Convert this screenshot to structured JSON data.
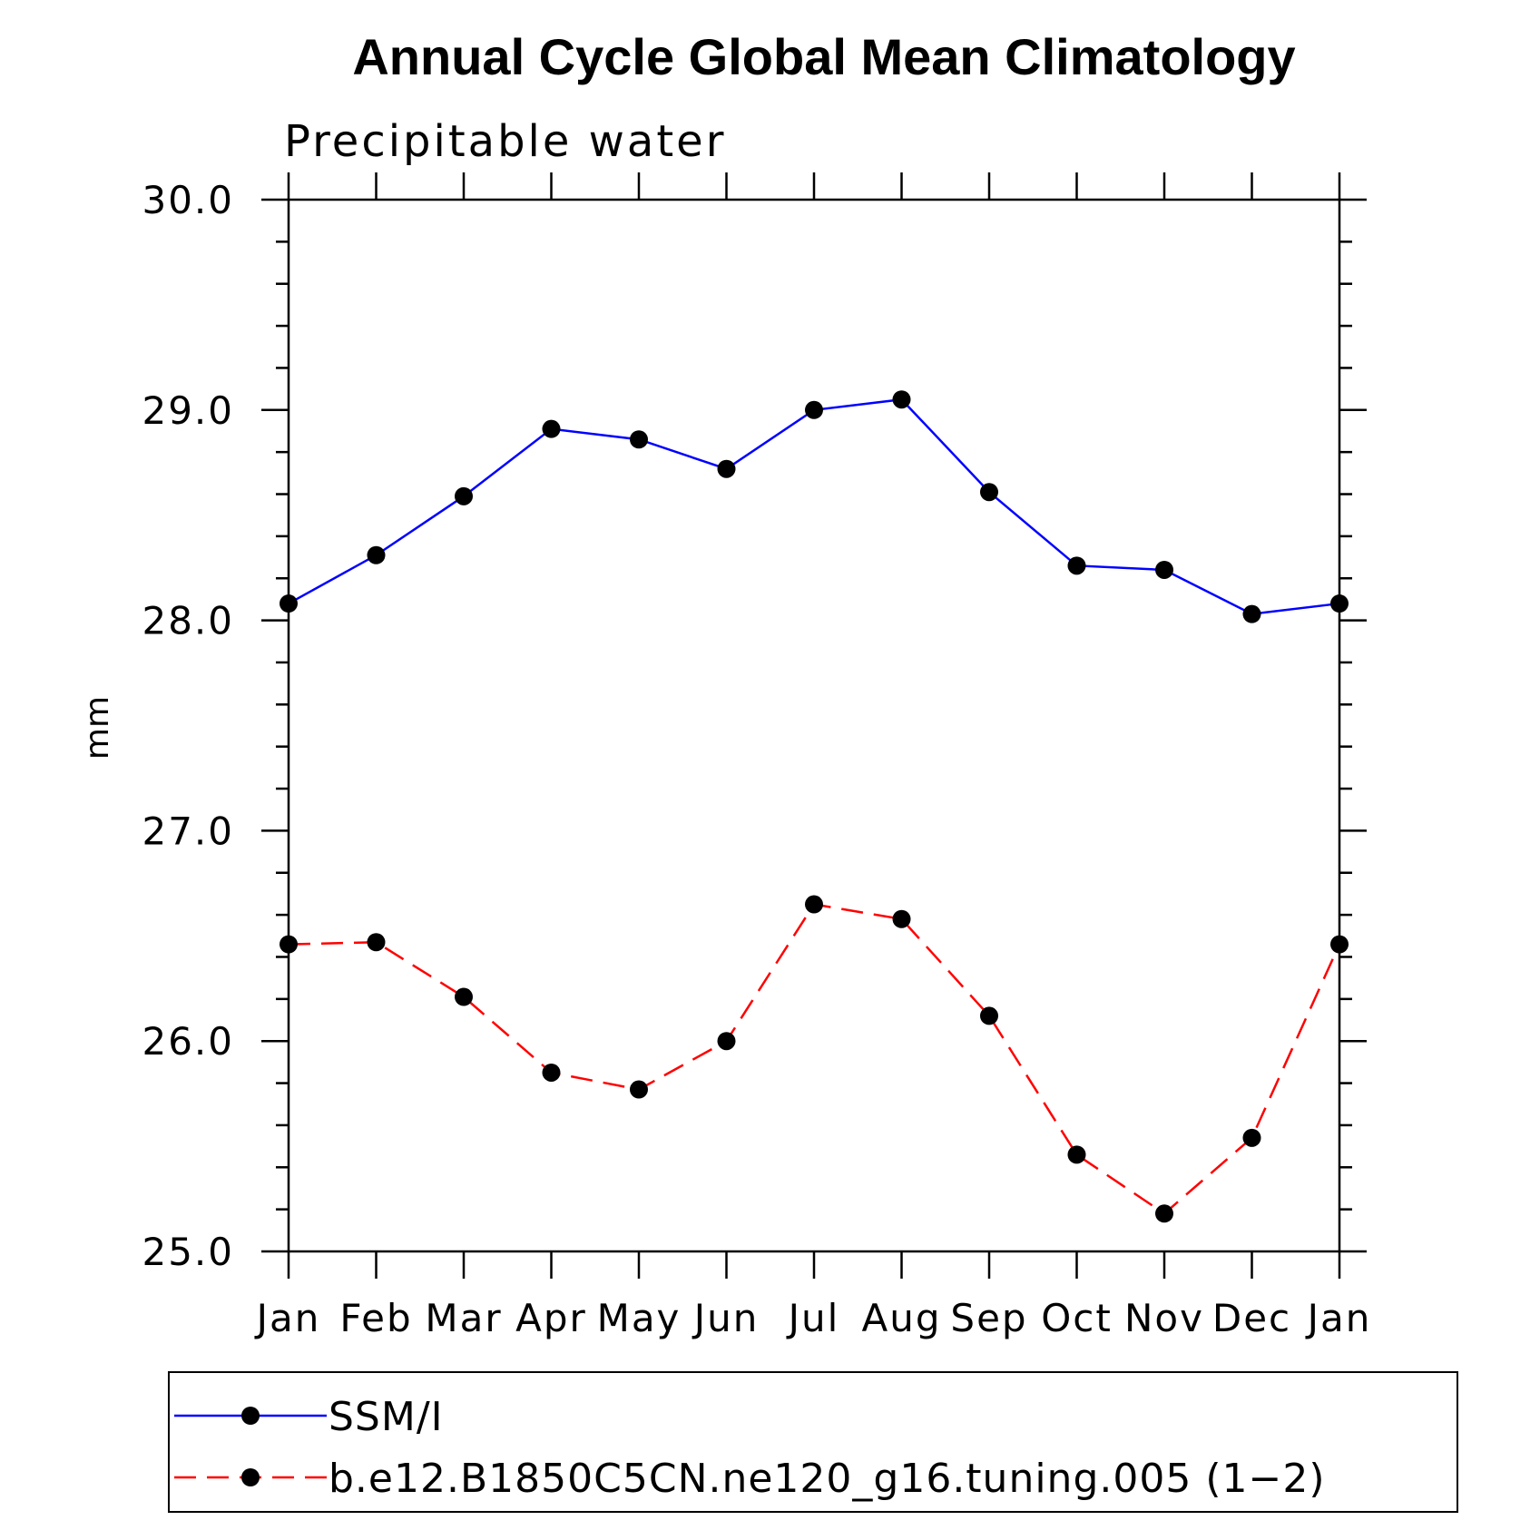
{
  "chart_data": {
    "type": "line",
    "title": "Annual Cycle Global Mean Climatology",
    "subtitle": "Precipitable water",
    "xlabel": "",
    "ylabel": "mm",
    "ylim": [
      25.0,
      30.0
    ],
    "yticks": [
      "25.0",
      "26.0",
      "27.0",
      "28.0",
      "29.0",
      "30.0"
    ],
    "categories": [
      "Jan",
      "Feb",
      "Mar",
      "Apr",
      "May",
      "Jun",
      "Jul",
      "Aug",
      "Sep",
      "Oct",
      "Nov",
      "Dec",
      "Jan"
    ],
    "series": [
      {
        "name": "SSM/I",
        "color": "#0000ff",
        "dash": "solid",
        "values": [
          28.08,
          28.31,
          28.59,
          28.91,
          28.86,
          28.72,
          29.0,
          29.05,
          28.61,
          28.26,
          28.24,
          28.03,
          28.08
        ]
      },
      {
        "name": "b.e12.B1850C5CN.ne120_g16.tuning.005 (1−2)",
        "color": "#ff0000",
        "dash": "dashed",
        "values": [
          26.46,
          26.47,
          26.21,
          25.85,
          25.77,
          26.0,
          26.65,
          26.58,
          26.12,
          25.46,
          25.18,
          25.54,
          26.46
        ]
      }
    ],
    "legend": "bottom",
    "grid": false
  }
}
